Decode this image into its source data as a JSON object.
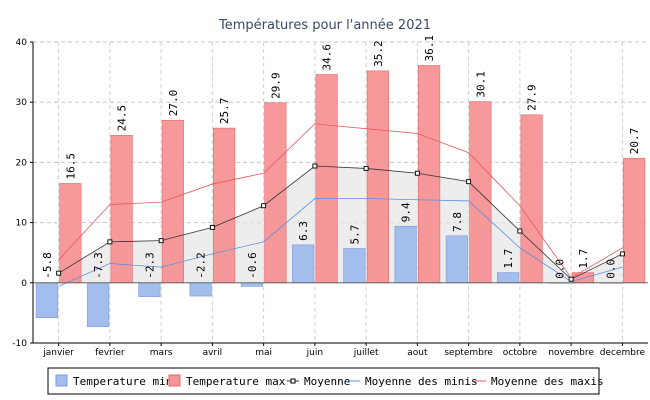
{
  "chart_data": {
    "type": "bar",
    "title": "Températures pour l'année 2021",
    "categories": [
      "janvier",
      "fevrier",
      "mars",
      "avril",
      "mai",
      "juin",
      "juillet",
      "aout",
      "septembre",
      "octobre",
      "novembre",
      "decembre"
    ],
    "ylim": [
      -10,
      40
    ],
    "yticks": [
      -10,
      0,
      10,
      20,
      30,
      40
    ],
    "grid": true,
    "series": [
      {
        "name": "Temperature min",
        "kind": "bar",
        "color": "#a3bdec",
        "stroke": "#7f9bd6",
        "values": [
          -5.8,
          -7.3,
          -2.3,
          -2.2,
          -0.6,
          6.3,
          5.7,
          9.4,
          7.8,
          1.7,
          0.0,
          0.0
        ],
        "labels": [
          "-5.8",
          "-7.3",
          "-2.3",
          "-2.2",
          "-0.6",
          "6.3",
          "5.7",
          "9.4",
          "7.8",
          "1.7",
          "0.0",
          "0.0"
        ]
      },
      {
        "name": "Temperature max",
        "kind": "bar",
        "color": "#f79496",
        "stroke": "#e06a6d",
        "values": [
          16.5,
          24.5,
          27.0,
          25.7,
          29.9,
          34.6,
          35.2,
          36.1,
          30.1,
          27.9,
          1.7,
          20.7
        ],
        "labels": [
          "16.5",
          "24.5",
          "27.0",
          "25.7",
          "29.9",
          "34.6",
          "35.2",
          "36.1",
          "30.1",
          "27.9",
          "1.7",
          "20.7"
        ]
      },
      {
        "name": "Moyenne",
        "kind": "line",
        "color": "#333333",
        "values": [
          1.6,
          6.8,
          7.0,
          9.2,
          12.8,
          19.4,
          19.0,
          18.2,
          16.8,
          8.6,
          0.6,
          4.8
        ]
      },
      {
        "name": "Moyenne des minis",
        "kind": "line",
        "color": "#5b8fe0",
        "values": [
          -0.6,
          3.2,
          2.6,
          4.8,
          6.8,
          14.0,
          14.0,
          13.8,
          13.6,
          5.8,
          0.2,
          2.6
        ]
      },
      {
        "name": "Moyenne des maxis",
        "kind": "line",
        "color": "#e8585c",
        "values": [
          3.8,
          13.0,
          13.4,
          16.4,
          18.2,
          26.4,
          25.6,
          24.8,
          21.6,
          12.8,
          0.8,
          5.8
        ]
      }
    ],
    "legend": {
      "position": "bottom",
      "items": [
        "Temperature min",
        "Temperature max",
        "Moyenne",
        "Moyenne des minis",
        "Moyenne des maxis"
      ]
    }
  }
}
